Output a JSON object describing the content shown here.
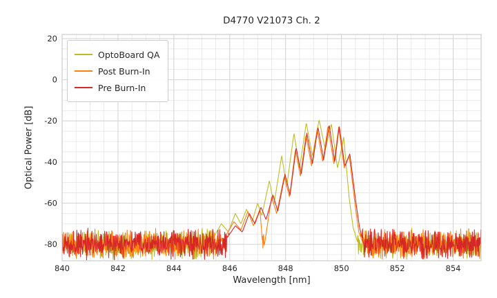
{
  "title": "D4770 V21073 Ch. 2",
  "chart_data": {
    "type": "line",
    "title": "D4770 V21073 Ch. 2",
    "xlabel": "Wavelength [nm]",
    "ylabel": "Optical Power [dB]",
    "xlim": [
      840,
      855
    ],
    "ylim": [
      -88,
      22
    ],
    "xticks": [
      840,
      842,
      844,
      846,
      848,
      850,
      852,
      854
    ],
    "yticks": [
      20,
      0,
      -20,
      -40,
      -60,
      -80
    ],
    "minor_x_step": 0.5,
    "minor_y_step": 5,
    "grid": true,
    "legend_position": "upper left",
    "noise_floor_db": -80,
    "noise_amplitude_db": 8,
    "colors": {
      "grid_minor": "#e1e1e1",
      "grid_major": "#d2d2d2",
      "spine": "#cccccc",
      "text": "#262626"
    },
    "series": [
      {
        "name": "OptoBoard QA",
        "color": "#bcbd22",
        "seed": 11,
        "envelope": [
          [
            845.45,
            -76
          ],
          [
            845.7,
            -70
          ],
          [
            845.95,
            -74
          ],
          [
            846.2,
            -65
          ],
          [
            846.4,
            -70
          ],
          [
            846.6,
            -63
          ],
          [
            846.8,
            -69
          ],
          [
            847.0,
            -60
          ],
          [
            847.15,
            -66
          ],
          [
            847.42,
            -49
          ],
          [
            847.58,
            -61
          ],
          [
            847.86,
            -37
          ],
          [
            848.04,
            -52
          ],
          [
            848.3,
            -26
          ],
          [
            848.5,
            -43
          ],
          [
            848.74,
            -21
          ],
          [
            848.96,
            -37
          ],
          [
            849.2,
            -19.5
          ],
          [
            849.42,
            -34
          ],
          [
            849.64,
            -21.5
          ],
          [
            849.86,
            -43
          ],
          [
            850.08,
            -28
          ],
          [
            850.28,
            -58
          ],
          [
            850.42,
            -72
          ],
          [
            850.6,
            -80
          ]
        ]
      },
      {
        "name": "Post Burn-In",
        "color": "#ff7f0e",
        "seed": 22,
        "envelope": [
          [
            845.85,
            -76
          ],
          [
            846.15,
            -69
          ],
          [
            846.4,
            -73
          ],
          [
            846.65,
            -64
          ],
          [
            846.85,
            -71
          ],
          [
            847.08,
            -63
          ],
          [
            847.2,
            -84
          ],
          [
            847.5,
            -57
          ],
          [
            847.68,
            -65
          ],
          [
            847.95,
            -47
          ],
          [
            848.14,
            -57
          ],
          [
            848.35,
            -34
          ],
          [
            848.53,
            -47
          ],
          [
            848.73,
            -27
          ],
          [
            848.93,
            -42
          ],
          [
            849.13,
            -24
          ],
          [
            849.33,
            -40
          ],
          [
            849.52,
            -22.5
          ],
          [
            849.73,
            -41
          ],
          [
            849.9,
            -23
          ],
          [
            850.1,
            -43
          ],
          [
            850.28,
            -37
          ],
          [
            850.48,
            -60
          ],
          [
            850.62,
            -74
          ],
          [
            850.78,
            -80
          ]
        ]
      },
      {
        "name": "Pre Burn-In",
        "color": "#d62728",
        "seed": 33,
        "envelope": [
          [
            845.9,
            -77
          ],
          [
            846.2,
            -71
          ],
          [
            846.45,
            -74
          ],
          [
            846.7,
            -65
          ],
          [
            846.9,
            -70
          ],
          [
            847.12,
            -62
          ],
          [
            847.3,
            -68
          ],
          [
            847.55,
            -56
          ],
          [
            847.72,
            -64
          ],
          [
            847.98,
            -46
          ],
          [
            848.16,
            -56
          ],
          [
            848.38,
            -33
          ],
          [
            848.56,
            -46
          ],
          [
            848.76,
            -26
          ],
          [
            848.96,
            -41
          ],
          [
            849.16,
            -23
          ],
          [
            849.36,
            -39
          ],
          [
            849.56,
            -22
          ],
          [
            849.76,
            -40
          ],
          [
            849.92,
            -22.5
          ],
          [
            850.12,
            -42
          ],
          [
            850.3,
            -36
          ],
          [
            850.5,
            -58
          ],
          [
            850.65,
            -72
          ],
          [
            850.8,
            -80
          ]
        ]
      }
    ]
  }
}
